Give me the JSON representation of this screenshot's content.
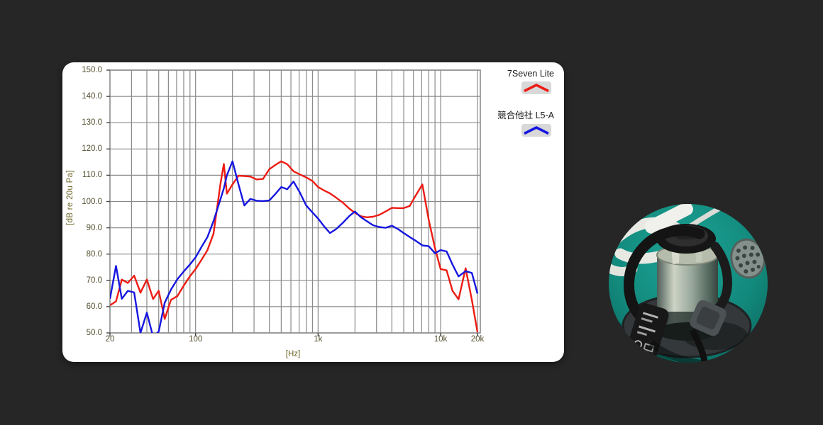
{
  "chart": {
    "y_axis_label": "[dB re 20u Pa]",
    "x_axis_label": "[Hz]",
    "y_tick_labels": [
      "150.0",
      "140.0",
      "130.0",
      "120.0",
      "110.0",
      "100.0",
      "90.0",
      "80.0",
      "70.0",
      "60.0",
      "50.0"
    ],
    "x_ticks": [
      {
        "label": "20",
        "hz": 20
      },
      {
        "label": "100",
        "hz": 100
      },
      {
        "label": "1k",
        "hz": 1000
      },
      {
        "label": "10k",
        "hz": 10000
      },
      {
        "label": "20k",
        "hz": 20000
      }
    ],
    "colors": {
      "grid": "#8a8a8a",
      "plot_border": "#8a8a8a",
      "panel_background": "#ffffff",
      "page_background": "#262626",
      "axis_text": "#55502f",
      "axis_title_text": "#6b6325",
      "legend_swatch_background": "#d8d8d8"
    }
  },
  "chart_data": {
    "type": "line",
    "title": "",
    "xlabel": "[Hz]",
    "ylabel": "[dB re 20u Pa]",
    "x_scale": "log",
    "xlim": [
      20,
      20000
    ],
    "ylim": [
      50,
      150
    ],
    "y_grid_step": 10,
    "grid": true,
    "legend_position": "top-right-outside",
    "x": [
      20,
      22.4,
      25,
      28,
      31.5,
      35.5,
      40,
      45,
      50,
      56,
      63,
      71,
      80,
      90,
      100,
      112,
      125,
      140,
      160,
      170,
      180,
      200,
      224,
      250,
      280,
      315,
      355,
      400,
      450,
      500,
      560,
      630,
      710,
      800,
      900,
      1000,
      1120,
      1250,
      1400,
      1600,
      1800,
      2000,
      2240,
      2500,
      2800,
      3150,
      3550,
      4000,
      4500,
      5000,
      5600,
      6300,
      7100,
      8000,
      9000,
      10000,
      11200,
      12500,
      14000,
      16000,
      18000,
      20000
    ],
    "series": [
      {
        "name": "7Seven Lite",
        "color": "#ec1c14",
        "values": [
          60.5,
          62,
          70.3,
          69,
          71.8,
          65.3,
          70.3,
          62.9,
          66,
          55.3,
          62.6,
          64,
          68,
          71.6,
          74.3,
          77.9,
          81.5,
          87.7,
          107,
          114.3,
          103,
          106.5,
          109.8,
          109.7,
          109.5,
          108.4,
          108.6,
          112.3,
          114,
          115.3,
          114.2,
          111.5,
          110.3,
          109.2,
          107.8,
          105.5,
          104.2,
          103.1,
          101.5,
          99.5,
          97.3,
          95.7,
          94.4,
          94,
          94.2,
          94.9,
          96.2,
          97.6,
          97.5,
          97.5,
          98.3,
          102.5,
          106.5,
          93,
          82.3,
          74.3,
          73.8,
          66,
          62.8,
          74.6,
          62.5,
          50.3
        ]
      },
      {
        "name": "競合他社 L5-A",
        "color": "#1616e0",
        "values": [
          63,
          75.5,
          63,
          66,
          65.4,
          50,
          57.7,
          48.5,
          50.5,
          61.5,
          66.5,
          70.4,
          73.4,
          76.1,
          78.8,
          82.8,
          86.5,
          92.5,
          101,
          105,
          110,
          115.3,
          106.5,
          98.5,
          101,
          100.3,
          100.2,
          100.4,
          103,
          105.5,
          104.7,
          107.6,
          103.4,
          98.5,
          95.8,
          93.5,
          90.5,
          88,
          89.5,
          92,
          94.5,
          96.2,
          94,
          92.5,
          91,
          90.3,
          90,
          90.8,
          89.5,
          88,
          86.5,
          85,
          83.3,
          83,
          80.3,
          81.5,
          81,
          76,
          71.5,
          73.5,
          72.8,
          65
        ]
      }
    ]
  },
  "photo": {
    "colors": {
      "table_teal": "#15988b",
      "table_teal_dark": "#0b655c",
      "device_black": "#1b1b1b",
      "cylinder_metal": "#a9b2a4",
      "base_plate": "#34383a",
      "headset_white": "#ebebe7",
      "grille_metal": "#84908c"
    }
  }
}
